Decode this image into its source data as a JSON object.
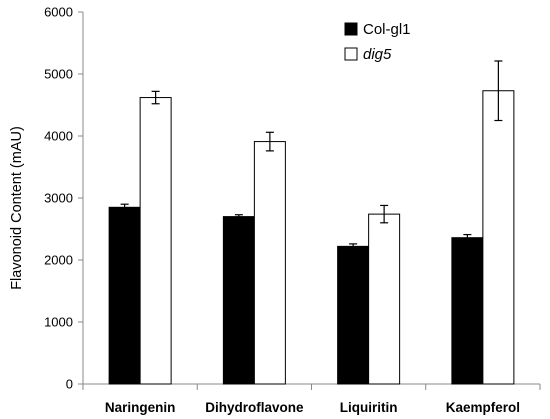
{
  "chart_data": {
    "type": "bar",
    "ylabel": "Flavonoid Content (mAU)",
    "xlabel": "",
    "ylim": [
      0,
      6000
    ],
    "yticks": [
      0,
      1000,
      2000,
      3000,
      4000,
      5000,
      6000
    ],
    "categories": [
      "Naringenin",
      "Dihydroflavone",
      "Liquiritin",
      "Kaempferol"
    ],
    "series": [
      {
        "name": "Col-gl1",
        "italic": false,
        "fill": "#000000",
        "values": [
          2850,
          2700,
          2220,
          2360
        ],
        "errors": [
          50,
          30,
          40,
          50
        ]
      },
      {
        "name": "dig5",
        "italic": true,
        "fill": "#ffffff",
        "values": [
          4620,
          3910,
          2740,
          4730
        ],
        "errors": [
          100,
          150,
          140,
          480
        ]
      }
    ],
    "legend_position": "top-right",
    "grid": false
  }
}
